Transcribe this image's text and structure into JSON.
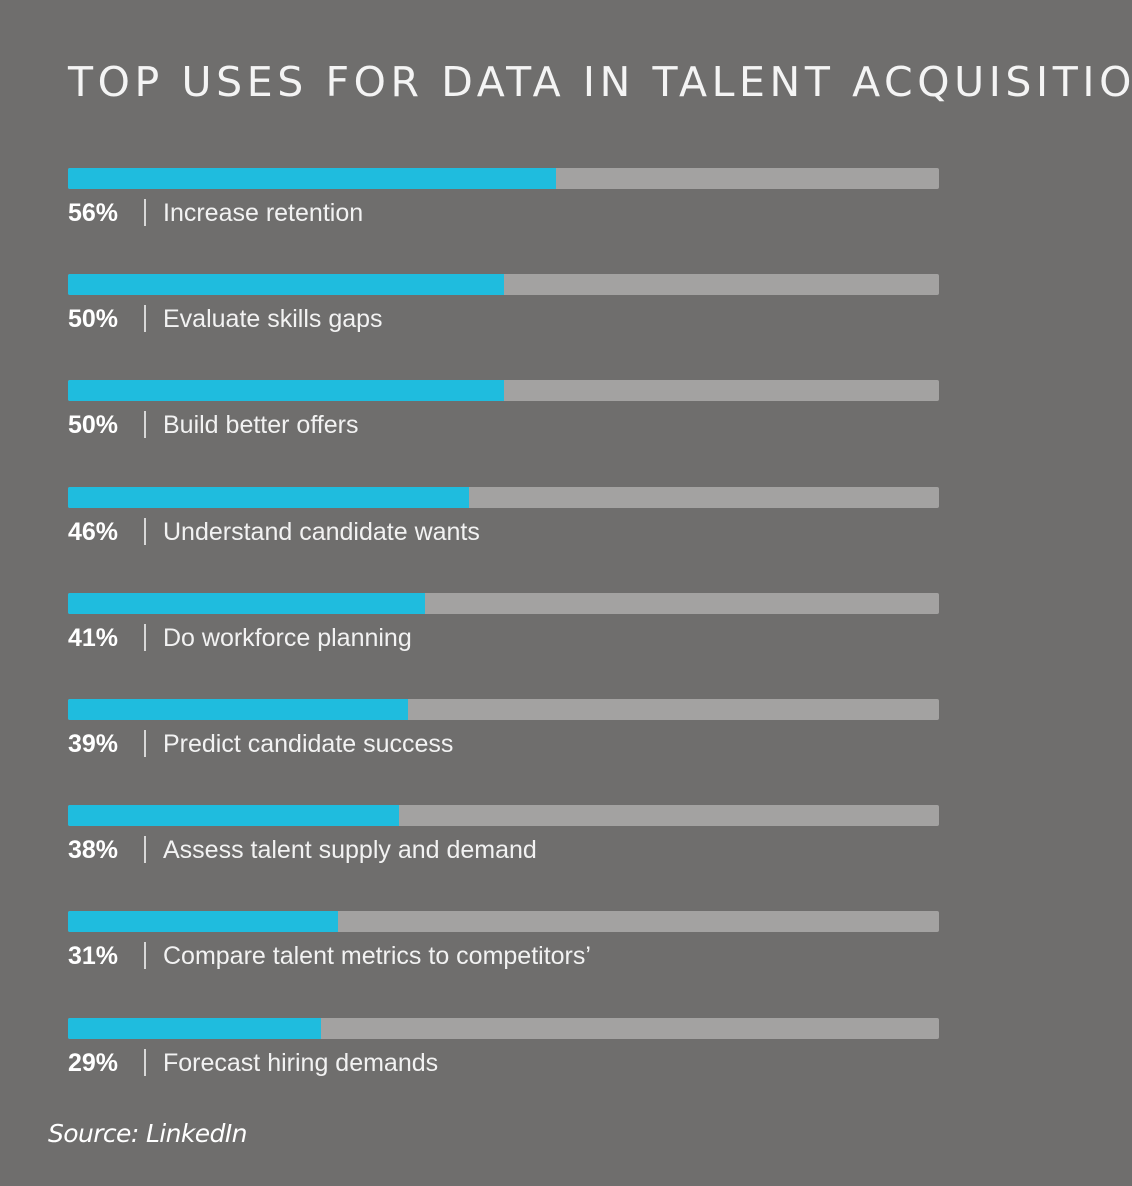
{
  "chart_data": {
    "type": "bar",
    "orientation": "horizontal",
    "title": "TOP USES FOR DATA IN TALENT ACQUISITION",
    "source": "Source: LinkedIn",
    "xlim": [
      0,
      100
    ],
    "grid": false,
    "colors": {
      "fill": "#1fbcde",
      "track": "#a3a2a1",
      "background": "#6f6e6d"
    },
    "bars": [
      {
        "value": 56,
        "value_label": "56%",
        "category": "Increase retention"
      },
      {
        "value": 50,
        "value_label": "50%",
        "category": "Evaluate skills gaps"
      },
      {
        "value": 50,
        "value_label": "50%",
        "category": "Build better offers"
      },
      {
        "value": 46,
        "value_label": "46%",
        "category": "Understand candidate wants"
      },
      {
        "value": 41,
        "value_label": "41%",
        "category": "Do workforce planning"
      },
      {
        "value": 39,
        "value_label": "39%",
        "category": "Predict candidate success"
      },
      {
        "value": 38,
        "value_label": "38%",
        "category": "Assess talent supply and demand"
      },
      {
        "value": 31,
        "value_label": "31%",
        "category": "Compare talent metrics to competitors’"
      },
      {
        "value": 29,
        "value_label": "29%",
        "category": "Forecast hiring demands"
      }
    ]
  }
}
